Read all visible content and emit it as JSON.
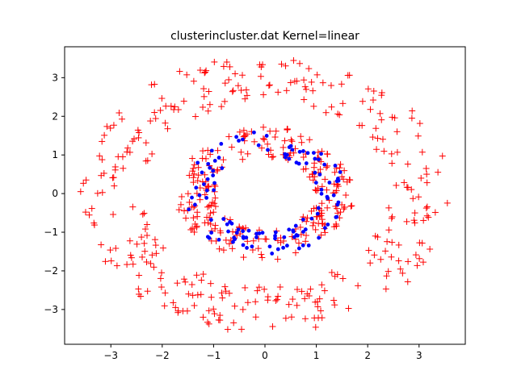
{
  "chart_data": {
    "type": "scatter",
    "title": "clusterincluster.dat Kernel=linear",
    "xlabel": "",
    "ylabel": "",
    "xlim": [
      -3.9,
      3.9
    ],
    "ylim": [
      -3.9,
      3.8
    ],
    "xticks": [
      -3,
      -2,
      -1,
      0,
      1,
      2,
      3
    ],
    "yticks": [
      -3,
      -2,
      -1,
      0,
      1,
      2,
      3
    ],
    "xtick_labels": [
      "−3",
      "−2",
      "−1",
      "0",
      "1",
      "2",
      "3"
    ],
    "ytick_labels": [
      "−3",
      "−2",
      "−1",
      "0",
      "1",
      "2",
      "3"
    ],
    "grid": false,
    "legend": "none",
    "series": [
      {
        "marker": "+",
        "color": "#ff0000",
        "description": "red plus markers distributed over an outer ring (radius about 2.5-3.5) and an inner ring (radius about 1.0-1.7)",
        "rings": [
          {
            "radius_min": 2.4,
            "radius_max": 3.6,
            "count": 330
          },
          {
            "radius_min": 0.95,
            "radius_max": 1.75,
            "count": 260
          }
        ]
      },
      {
        "marker": "o",
        "color": "#0000ff",
        "description": "blue dot markers on the inner ring only",
        "rings": [
          {
            "radius_min": 1.0,
            "radius_max": 1.6,
            "count": 120
          }
        ]
      }
    ]
  }
}
